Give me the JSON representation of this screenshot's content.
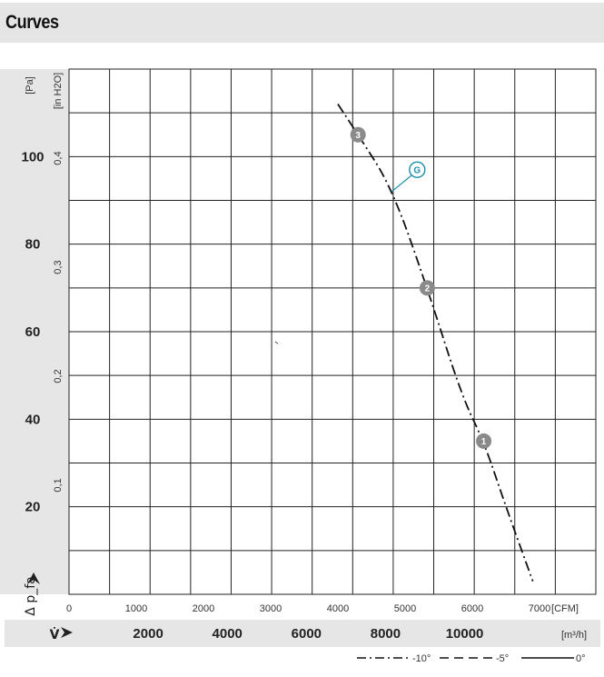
{
  "header": {
    "title": "Curves"
  },
  "chart_data": {
    "type": "line",
    "xlabel": "V̇",
    "ylabel": "Δ p_fa",
    "x_units": [
      "[m³/h]",
      "[CFM]"
    ],
    "y_units": [
      "[Pa]",
      "[in H2O]"
    ],
    "xlim_cfm": [
      0,
      7000
    ],
    "ylim_pa": [
      0,
      120
    ],
    "x_ticks_cfm": [
      0,
      1000,
      2000,
      3000,
      4000,
      5000,
      6000,
      7000
    ],
    "x_ticks_cfm_labels": [
      "0",
      "1000",
      "2000",
      "3000",
      "4000",
      "5000",
      "6000",
      "7000"
    ],
    "x_ticks_m3h": [
      2000,
      4000,
      6000,
      8000,
      10000
    ],
    "x_ticks_m3h_labels": [
      "2000",
      "4000",
      "6000",
      "8000",
      "10000"
    ],
    "y_ticks_pa": [
      20,
      40,
      60,
      80,
      100
    ],
    "y_ticks_pa_labels": [
      "20",
      "40",
      "60",
      "80",
      "100"
    ],
    "y_ticks_inh2o": [
      0.1,
      0.2,
      0.3,
      0.4
    ],
    "y_ticks_inh2o_labels": [
      "0,1",
      "0,2",
      "0,3",
      "0,4"
    ],
    "grid": true,
    "series": [
      {
        "x_cfm": [
          4000,
          4300,
          4800,
          5330,
          5850,
          6170,
          6500,
          6900
        ],
        "y_pa": [
          112,
          105,
          93,
          70,
          45,
          35,
          20,
          3
        ]
      }
    ],
    "markers": [
      {
        "label": "3",
        "x_cfm": 4300,
        "y_pa": 105
      },
      {
        "label": "2",
        "x_cfm": 5330,
        "y_pa": 70
      },
      {
        "label": "1",
        "x_cfm": 6170,
        "y_pa": 35
      }
    ],
    "annotation": {
      "label": "G",
      "x_cfm": 5180,
      "y_pa": 97,
      "target_x_cfm": 4800,
      "target_y_pa": 92
    },
    "legend": {
      "placement": "bottom-right",
      "entries": [
        {
          "label": "-10°",
          "style": "dash-dot"
        },
        {
          "label": "-5°",
          "style": "dashed"
        },
        {
          "label": "0°",
          "style": "solid"
        }
      ]
    }
  }
}
